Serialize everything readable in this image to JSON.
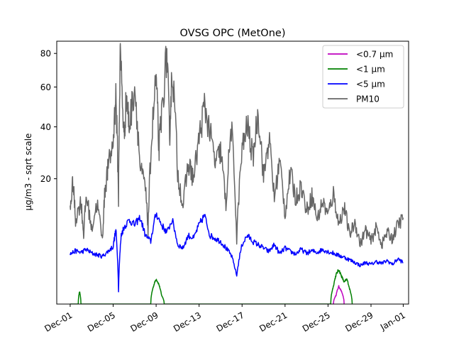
{
  "chart_data": {
    "type": "line",
    "title": "OVSG OPC (MetOne)",
    "xlabel": "",
    "ylabel": "µg/m3 - sqrt scale",
    "y_scale": "sqrt",
    "x_range": [
      "2023-11-29T18:00",
      "2024-01-01T12:00"
    ],
    "y_range": [
      0,
      88
    ],
    "x_ticks": [
      {
        "date": "2023-12-01",
        "label": "Dec-01"
      },
      {
        "date": "2023-12-05",
        "label": "Dec-05"
      },
      {
        "date": "2023-12-09",
        "label": "Dec-09"
      },
      {
        "date": "2023-12-13",
        "label": "Dec-13"
      },
      {
        "date": "2023-12-17",
        "label": "Dec-17"
      },
      {
        "date": "2023-12-21",
        "label": "Dec-21"
      },
      {
        "date": "2023-12-25",
        "label": "Dec-25"
      },
      {
        "date": "2023-12-29",
        "label": "Dec-29"
      },
      {
        "date": "2024-01-01",
        "label": "Jan-01"
      }
    ],
    "y_ticks": [
      20,
      40,
      60,
      80
    ],
    "legend_position": "top-right",
    "grid": false,
    "series": [
      {
        "name": "<0.7 µm",
        "color": "#bf00bf",
        "points": [
          [
            "2023-12-25T12:00",
            0
          ],
          [
            "2023-12-25T18:00",
            0.1
          ],
          [
            "2023-12-26T00:00",
            0.4
          ],
          [
            "2023-12-26T06:00",
            0.2
          ],
          [
            "2023-12-26T12:00",
            0
          ]
        ]
      },
      {
        "name": "<1 µm",
        "color": "#008000",
        "points": [
          [
            "2023-12-01T00:00",
            0
          ],
          [
            "2023-12-01T18:00",
            0
          ],
          [
            "2023-12-01T21:00",
            0.2
          ],
          [
            "2023-12-02T00:00",
            0
          ],
          [
            "2023-12-08T12:00",
            0
          ],
          [
            "2023-12-08T18:00",
            0.4
          ],
          [
            "2023-12-09T00:00",
            0.8
          ],
          [
            "2023-12-09T06:00",
            0.5
          ],
          [
            "2023-12-09T12:00",
            0.1
          ],
          [
            "2023-12-09T18:00",
            0
          ],
          [
            "2023-12-25T06:00",
            0
          ],
          [
            "2023-12-25T12:00",
            0.4
          ],
          [
            "2023-12-25T18:00",
            1.1
          ],
          [
            "2023-12-26T00:00",
            1.5
          ],
          [
            "2023-12-26T06:00",
            1.0
          ],
          [
            "2023-12-26T12:00",
            0.6
          ],
          [
            "2023-12-26T18:00",
            0.8
          ],
          [
            "2023-12-27T00:00",
            0.3
          ],
          [
            "2023-12-27T06:00",
            0
          ]
        ]
      },
      {
        "name": "<5 µm",
        "color": "#0000ff",
        "points": [
          [
            "2023-12-01T00:00",
            3.2
          ],
          [
            "2023-12-01T12:00",
            3.6
          ],
          [
            "2023-12-02T00:00",
            3.4
          ],
          [
            "2023-12-02T12:00",
            3.8
          ],
          [
            "2023-12-03T00:00",
            3.3
          ],
          [
            "2023-12-03T12:00",
            3.1
          ],
          [
            "2023-12-04T00:00",
            2.9
          ],
          [
            "2023-12-04T12:00",
            3.5
          ],
          [
            "2023-12-05T00:00",
            4.2
          ],
          [
            "2023-12-05T06:00",
            7.0
          ],
          [
            "2023-12-05T12:00",
            0.2
          ],
          [
            "2023-12-05T18:00",
            6.0
          ],
          [
            "2023-12-06T00:00",
            7.5
          ],
          [
            "2023-12-06T12:00",
            9.0
          ],
          [
            "2023-12-07T00:00",
            8.0
          ],
          [
            "2023-12-07T12:00",
            9.5
          ],
          [
            "2023-12-08T00:00",
            6.0
          ],
          [
            "2023-12-08T12:00",
            5.0
          ],
          [
            "2023-12-09T00:00",
            10.5
          ],
          [
            "2023-12-09T12:00",
            8.0
          ],
          [
            "2023-12-10T00:00",
            6.5
          ],
          [
            "2023-12-10T12:00",
            9.0
          ],
          [
            "2023-12-11T00:00",
            4.5
          ],
          [
            "2023-12-11T12:00",
            4.0
          ],
          [
            "2023-12-12T00:00",
            6.0
          ],
          [
            "2023-12-12T12:00",
            5.5
          ],
          [
            "2023-12-13T00:00",
            8.0
          ],
          [
            "2023-12-13T12:00",
            10.0
          ],
          [
            "2023-12-14T00:00",
            6.0
          ],
          [
            "2023-12-14T12:00",
            5.5
          ],
          [
            "2023-12-15T00:00",
            5.0
          ],
          [
            "2023-12-15T12:00",
            4.0
          ],
          [
            "2023-12-16T00:00",
            3.0
          ],
          [
            "2023-12-16T12:00",
            1.0
          ],
          [
            "2023-12-17T00:00",
            4.5
          ],
          [
            "2023-12-17T12:00",
            6.0
          ],
          [
            "2023-12-18T00:00",
            5.0
          ],
          [
            "2023-12-18T12:00",
            4.5
          ],
          [
            "2023-12-19T00:00",
            4.0
          ],
          [
            "2023-12-19T12:00",
            3.5
          ],
          [
            "2023-12-20T00:00",
            4.5
          ],
          [
            "2023-12-20T12:00",
            3.2
          ],
          [
            "2023-12-21T00:00",
            4.0
          ],
          [
            "2023-12-21T12:00",
            3.5
          ],
          [
            "2023-12-22T00:00",
            3.2
          ],
          [
            "2023-12-22T12:00",
            3.8
          ],
          [
            "2023-12-23T00:00",
            3.3
          ],
          [
            "2023-12-23T12:00",
            3.6
          ],
          [
            "2023-12-24T00:00",
            3.4
          ],
          [
            "2023-12-24T12:00",
            3.8
          ],
          [
            "2023-12-25T00:00",
            3.5
          ],
          [
            "2023-12-25T12:00",
            3.3
          ],
          [
            "2023-12-26T00:00",
            3.0
          ],
          [
            "2023-12-26T12:00",
            2.8
          ],
          [
            "2023-12-27T00:00",
            2.5
          ],
          [
            "2023-12-27T12:00",
            2.2
          ],
          [
            "2023-12-28T00:00",
            1.9
          ],
          [
            "2023-12-28T12:00",
            2.2
          ],
          [
            "2023-12-29T00:00",
            2.0
          ],
          [
            "2023-12-29T12:00",
            2.3
          ],
          [
            "2023-12-30T00:00",
            2.1
          ],
          [
            "2023-12-30T12:00",
            2.4
          ],
          [
            "2023-12-31T00:00",
            2.0
          ],
          [
            "2023-12-31T12:00",
            2.6
          ],
          [
            "2024-01-01T00:00",
            2.2
          ]
        ]
      },
      {
        "name": "PM10",
        "color": "#666666",
        "points": [
          [
            "2023-12-01T00:00",
            11.0
          ],
          [
            "2023-12-01T06:00",
            19.0
          ],
          [
            "2023-12-01T12:00",
            9.0
          ],
          [
            "2023-12-02T00:00",
            13.5
          ],
          [
            "2023-12-02T06:00",
            6.0
          ],
          [
            "2023-12-02T12:00",
            15.0
          ],
          [
            "2023-12-03T00:00",
            7.0
          ],
          [
            "2023-12-03T12:00",
            13.0
          ],
          [
            "2023-12-04T00:00",
            5.0
          ],
          [
            "2023-12-04T06:00",
            17.0
          ],
          [
            "2023-12-04T12:00",
            23.0
          ],
          [
            "2023-12-05T00:00",
            33.0
          ],
          [
            "2023-12-05T06:00",
            56.0
          ],
          [
            "2023-12-05T12:00",
            14.0
          ],
          [
            "2023-12-05T16:00",
            82.0
          ],
          [
            "2023-12-06T00:00",
            35.0
          ],
          [
            "2023-12-06T06:00",
            55.0
          ],
          [
            "2023-12-06T12:00",
            40.0
          ],
          [
            "2023-12-07T00:00",
            61.0
          ],
          [
            "2023-12-07T12:00",
            24.0
          ],
          [
            "2023-12-08T00:00",
            17.0
          ],
          [
            "2023-12-08T06:00",
            7.0
          ],
          [
            "2023-12-08T12:00",
            28.0
          ],
          [
            "2023-12-09T00:00",
            66.0
          ],
          [
            "2023-12-09T06:00",
            30.0
          ],
          [
            "2023-12-09T12:00",
            45.0
          ],
          [
            "2023-12-10T00:00",
            80.0
          ],
          [
            "2023-12-10T06:00",
            35.0
          ],
          [
            "2023-12-10T12:00",
            71.0
          ],
          [
            "2023-12-11T00:00",
            22.0
          ],
          [
            "2023-12-11T12:00",
            12.0
          ],
          [
            "2023-12-12T00:00",
            25.0
          ],
          [
            "2023-12-12T12:00",
            20.0
          ],
          [
            "2023-12-13T00:00",
            35.0
          ],
          [
            "2023-12-13T12:00",
            50.0
          ],
          [
            "2023-12-14T00:00",
            38.0
          ],
          [
            "2023-12-14T12:00",
            25.0
          ],
          [
            "2023-12-15T00:00",
            30.0
          ],
          [
            "2023-12-15T12:00",
            12.0
          ],
          [
            "2023-12-16T00:00",
            40.0
          ],
          [
            "2023-12-16T12:00",
            5.0
          ],
          [
            "2023-12-17T00:00",
            30.0
          ],
          [
            "2023-12-17T12:00",
            41.0
          ],
          [
            "2023-12-18T00:00",
            27.0
          ],
          [
            "2023-12-18T12:00",
            47.0
          ],
          [
            "2023-12-19T00:00",
            20.0
          ],
          [
            "2023-12-19T12:00",
            35.0
          ],
          [
            "2023-12-20T00:00",
            14.0
          ],
          [
            "2023-12-20T12:00",
            26.0
          ],
          [
            "2023-12-21T00:00",
            10.0
          ],
          [
            "2023-12-21T12:00",
            22.0
          ],
          [
            "2023-12-22T00:00",
            14.0
          ],
          [
            "2023-12-22T12:00",
            18.0
          ],
          [
            "2023-12-23T00:00",
            11.0
          ],
          [
            "2023-12-23T12:00",
            15.0
          ],
          [
            "2023-12-24T00:00",
            9.0
          ],
          [
            "2023-12-24T12:00",
            13.5
          ],
          [
            "2023-12-25T00:00",
            10.0
          ],
          [
            "2023-12-25T12:00",
            15.5
          ],
          [
            "2023-12-26T00:00",
            8.0
          ],
          [
            "2023-12-26T12:00",
            12.0
          ],
          [
            "2023-12-27T00:00",
            6.0
          ],
          [
            "2023-12-27T12:00",
            8.5
          ],
          [
            "2023-12-28T00:00",
            4.5
          ],
          [
            "2023-12-28T12:00",
            7.0
          ],
          [
            "2023-12-29T00:00",
            5.0
          ],
          [
            "2023-12-29T12:00",
            7.5
          ],
          [
            "2023-12-30T00:00",
            4.5
          ],
          [
            "2023-12-30T12:00",
            6.5
          ],
          [
            "2023-12-31T00:00",
            5.5
          ],
          [
            "2023-12-31T12:00",
            8.0
          ],
          [
            "2024-01-01T00:00",
            9.5
          ]
        ]
      }
    ]
  }
}
